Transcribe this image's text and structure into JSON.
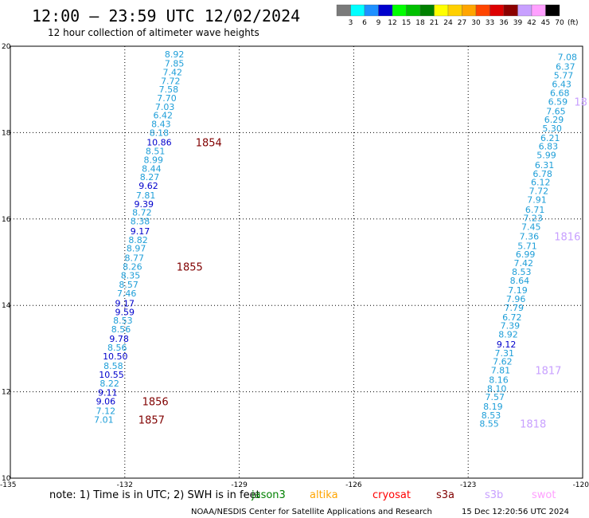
{
  "chart_data": {
    "type": "scatter",
    "title": "12:00 – 23:59 UTC 12/02/2024",
    "subtitle": "12 hour collection of altimeter wave heights",
    "xlim": [
      -135,
      -120
    ],
    "ylim": [
      10,
      20
    ],
    "x_ticks": [
      "-135",
      "-132",
      "-129",
      "-126",
      "-123",
      "-120"
    ],
    "y_ticks": [
      "20",
      "18",
      "16",
      "14",
      "12",
      "10"
    ],
    "grid": true,
    "colorbar": {
      "labels": [
        "3",
        "6",
        "9",
        "12",
        "15",
        "18",
        "21",
        "24",
        "27",
        "30",
        "33",
        "36",
        "39",
        "42",
        "45",
        "70"
      ],
      "unit": "(ft)",
      "colors": [
        "#7a7a7a",
        "#00ffff",
        "#1e90ff",
        "#0000cd",
        "#00ff00",
        "#00c000",
        "#008000",
        "#ffff00",
        "#ffd000",
        "#ffa500",
        "#ff4500",
        "#dd0000",
        "#8b0000",
        "#c8a0ff",
        "#ffa0ff",
        "#000000"
      ]
    },
    "track_time_color": "#800000",
    "series": [
      {
        "points": [
          {
            "lon": -130.7,
            "lat": 19.82,
            "v": "8.92",
            "c": "#1e9ed8"
          },
          {
            "lon": -130.7,
            "lat": 19.6,
            "v": "7.85",
            "c": "#1e9ed8"
          },
          {
            "lon": -130.75,
            "lat": 19.4,
            "v": "7.42",
            "c": "#1e9ed8"
          },
          {
            "lon": -130.8,
            "lat": 19.2,
            "v": "7.72",
            "c": "#1e9ed8"
          },
          {
            "lon": -130.85,
            "lat": 19.0,
            "v": "7.58",
            "c": "#1e9ed8"
          },
          {
            "lon": -130.9,
            "lat": 18.8,
            "v": "7.70",
            "c": "#1e9ed8"
          },
          {
            "lon": -130.95,
            "lat": 18.6,
            "v": "7.03",
            "c": "#1e9ed8"
          },
          {
            "lon": -131.0,
            "lat": 18.4,
            "v": "6.42",
            "c": "#1e9ed8"
          },
          {
            "lon": -131.05,
            "lat": 18.2,
            "v": "8.43",
            "c": "#1e9ed8"
          },
          {
            "lon": -131.1,
            "lat": 18.0,
            "v": "8.18",
            "c": "#1e9ed8"
          },
          {
            "lon": -131.1,
            "lat": 17.78,
            "v": "10.86",
            "c": "#0000cc"
          },
          {
            "lon": -131.2,
            "lat": 17.57,
            "v": "8.51",
            "c": "#1e9ed8"
          },
          {
            "lon": -131.25,
            "lat": 17.37,
            "v": "8.99",
            "c": "#1e9ed8"
          },
          {
            "lon": -131.3,
            "lat": 17.17,
            "v": "8.44",
            "c": "#1e9ed8"
          },
          {
            "lon": -131.35,
            "lat": 16.97,
            "v": "8.27",
            "c": "#1e9ed8"
          },
          {
            "lon": -131.38,
            "lat": 16.77,
            "v": "9.62",
            "c": "#0000cc"
          },
          {
            "lon": -131.45,
            "lat": 16.55,
            "v": "7.81",
            "c": "#1e9ed8"
          },
          {
            "lon": -131.5,
            "lat": 16.35,
            "v": "9.39",
            "c": "#0000cc"
          },
          {
            "lon": -131.55,
            "lat": 16.15,
            "v": "8.72",
            "c": "#1e9ed8"
          },
          {
            "lon": -131.6,
            "lat": 15.95,
            "v": "8.38",
            "c": "#1e9ed8"
          },
          {
            "lon": -131.6,
            "lat": 15.72,
            "v": "9.17",
            "c": "#0000cc"
          },
          {
            "lon": -131.65,
            "lat": 15.52,
            "v": "8.82",
            "c": "#1e9ed8"
          },
          {
            "lon": -131.7,
            "lat": 15.32,
            "v": "8.97",
            "c": "#1e9ed8"
          },
          {
            "lon": -131.75,
            "lat": 15.1,
            "v": "8.77",
            "c": "#1e9ed8"
          },
          {
            "lon": -131.8,
            "lat": 14.9,
            "v": "8.26",
            "c": "#1e9ed8"
          },
          {
            "lon": -131.85,
            "lat": 14.7,
            "v": "8.35",
            "c": "#1e9ed8"
          },
          {
            "lon": -131.9,
            "lat": 14.48,
            "v": "8.57",
            "c": "#1e9ed8"
          },
          {
            "lon": -131.95,
            "lat": 14.28,
            "v": "7.46",
            "c": "#1e9ed8"
          },
          {
            "lon": -132.0,
            "lat": 14.05,
            "v": "9.17",
            "c": "#0000cc"
          },
          {
            "lon": -132.0,
            "lat": 13.85,
            "v": "9.59",
            "c": "#0000cc"
          },
          {
            "lon": -132.05,
            "lat": 13.65,
            "v": "8.53",
            "c": "#1e9ed8"
          },
          {
            "lon": -132.1,
            "lat": 13.45,
            "v": "8.56",
            "c": "#1e9ed8"
          },
          {
            "lon": -132.15,
            "lat": 13.23,
            "v": "9.78",
            "c": "#0000cc"
          },
          {
            "lon": -132.2,
            "lat": 13.03,
            "v": "8.56",
            "c": "#1e9ed8"
          },
          {
            "lon": -132.25,
            "lat": 12.82,
            "v": "10.50",
            "c": "#0000cc"
          },
          {
            "lon": -132.3,
            "lat": 12.6,
            "v": "8.58",
            "c": "#1e9ed8"
          },
          {
            "lon": -132.35,
            "lat": 12.4,
            "v": "10.55",
            "c": "#0000cc"
          },
          {
            "lon": -132.4,
            "lat": 12.2,
            "v": "8.22",
            "c": "#1e9ed8"
          },
          {
            "lon": -132.45,
            "lat": 11.98,
            "v": "9.11",
            "c": "#0000cc"
          },
          {
            "lon": -132.5,
            "lat": 11.78,
            "v": "9.06",
            "c": "#0000cc"
          },
          {
            "lon": -132.5,
            "lat": 11.56,
            "v": "7.12",
            "c": "#1e9ed8"
          },
          {
            "lon": -132.55,
            "lat": 11.36,
            "v": "7.01",
            "c": "#1e9ed8"
          }
        ],
        "time_labels": [
          {
            "lon": -129.8,
            "lat": 17.78,
            "t": "1854"
          },
          {
            "lon": -130.3,
            "lat": 14.9,
            "t": "1855"
          },
          {
            "lon": -131.2,
            "lat": 11.78,
            "t": "1856"
          },
          {
            "lon": -131.3,
            "lat": 11.36,
            "t": "1857"
          }
        ]
      },
      {
        "points": [
          {
            "lon": -120.4,
            "lat": 19.75,
            "v": "7.08",
            "c": "#1e9ed8"
          },
          {
            "lon": -120.45,
            "lat": 19.53,
            "v": "6.37",
            "c": "#1e9ed8"
          },
          {
            "lon": -120.5,
            "lat": 19.33,
            "v": "5.77",
            "c": "#1e9ed8"
          },
          {
            "lon": -120.55,
            "lat": 19.12,
            "v": "6.43",
            "c": "#1e9ed8"
          },
          {
            "lon": -120.6,
            "lat": 18.92,
            "v": "6.68",
            "c": "#1e9ed8"
          },
          {
            "lon": -120.65,
            "lat": 18.72,
            "v": "6.59",
            "c": "#1e9ed8"
          },
          {
            "lon": -120.7,
            "lat": 18.5,
            "v": "7.65",
            "c": "#1e9ed8"
          },
          {
            "lon": -120.75,
            "lat": 18.3,
            "v": "6.29",
            "c": "#1e9ed8"
          },
          {
            "lon": -120.8,
            "lat": 18.1,
            "v": "5.30",
            "c": "#1e9ed8"
          },
          {
            "lon": -120.85,
            "lat": 17.88,
            "v": "6.21",
            "c": "#1e9ed8"
          },
          {
            "lon": -120.9,
            "lat": 17.68,
            "v": "6.83",
            "c": "#1e9ed8"
          },
          {
            "lon": -120.95,
            "lat": 17.48,
            "v": "5.99",
            "c": "#1e9ed8"
          },
          {
            "lon": -121.0,
            "lat": 17.25,
            "v": "6.31",
            "c": "#1e9ed8"
          },
          {
            "lon": -121.05,
            "lat": 17.05,
            "v": "6.78",
            "c": "#1e9ed8"
          },
          {
            "lon": -121.1,
            "lat": 16.85,
            "v": "6.12",
            "c": "#1e9ed8"
          },
          {
            "lon": -121.15,
            "lat": 16.65,
            "v": "7.72",
            "c": "#1e9ed8"
          },
          {
            "lon": -121.2,
            "lat": 16.45,
            "v": "7.91",
            "c": "#1e9ed8"
          },
          {
            "lon": -121.25,
            "lat": 16.22,
            "v": "6.71",
            "c": "#1e9ed8"
          },
          {
            "lon": -121.3,
            "lat": 16.02,
            "v": "7.23",
            "c": "#1e9ed8"
          },
          {
            "lon": -121.35,
            "lat": 15.82,
            "v": "7.45",
            "c": "#1e9ed8"
          },
          {
            "lon": -121.4,
            "lat": 15.6,
            "v": "7.36",
            "c": "#1e9ed8"
          },
          {
            "lon": -121.45,
            "lat": 15.38,
            "v": "5.71",
            "c": "#1e9ed8"
          },
          {
            "lon": -121.5,
            "lat": 15.18,
            "v": "6.99",
            "c": "#1e9ed8"
          },
          {
            "lon": -121.55,
            "lat": 14.98,
            "v": "7.42",
            "c": "#1e9ed8"
          },
          {
            "lon": -121.6,
            "lat": 14.78,
            "v": "8.53",
            "c": "#1e9ed8"
          },
          {
            "lon": -121.65,
            "lat": 14.58,
            "v": "8.64",
            "c": "#1e9ed8"
          },
          {
            "lon": -121.7,
            "lat": 14.35,
            "v": "7.19",
            "c": "#1e9ed8"
          },
          {
            "lon": -121.75,
            "lat": 14.15,
            "v": "7.96",
            "c": "#1e9ed8"
          },
          {
            "lon": -121.8,
            "lat": 13.95,
            "v": "7.79",
            "c": "#1e9ed8"
          },
          {
            "lon": -121.85,
            "lat": 13.73,
            "v": "6.72",
            "c": "#1e9ed8"
          },
          {
            "lon": -121.9,
            "lat": 13.53,
            "v": "7.39",
            "c": "#1e9ed8"
          },
          {
            "lon": -121.95,
            "lat": 13.33,
            "v": "8.92",
            "c": "#1e9ed8"
          },
          {
            "lon": -122.0,
            "lat": 13.1,
            "v": "9.12",
            "c": "#0000cc"
          },
          {
            "lon": -122.05,
            "lat": 12.9,
            "v": "7.31",
            "c": "#1e9ed8"
          },
          {
            "lon": -122.1,
            "lat": 12.7,
            "v": "7.62",
            "c": "#1e9ed8"
          },
          {
            "lon": -122.15,
            "lat": 12.5,
            "v": "7.81",
            "c": "#1e9ed8"
          },
          {
            "lon": -122.2,
            "lat": 12.28,
            "v": "8.16",
            "c": "#1e9ed8"
          },
          {
            "lon": -122.25,
            "lat": 12.08,
            "v": "8.10",
            "c": "#1e9ed8"
          },
          {
            "lon": -122.3,
            "lat": 11.88,
            "v": "7.57",
            "c": "#1e9ed8"
          },
          {
            "lon": -122.35,
            "lat": 11.66,
            "v": "8.19",
            "c": "#1e9ed8"
          },
          {
            "lon": -122.4,
            "lat": 11.46,
            "v": "8.53",
            "c": "#1e9ed8"
          },
          {
            "lon": -122.45,
            "lat": 11.26,
            "v": "8.55",
            "c": "#1e9ed8"
          }
        ],
        "time_labels": [
          {
            "lon": -120.05,
            "lat": 18.72,
            "t": "18"
          },
          {
            "lon": -120.4,
            "lat": 15.6,
            "t": "1816"
          },
          {
            "lon": -120.9,
            "lat": 12.5,
            "t": "1817"
          },
          {
            "lon": -121.3,
            "lat": 11.26,
            "t": "1818"
          }
        ],
        "time_color": "#c8a0ff"
      }
    ]
  },
  "footer": {
    "note": "note: 1) Time is in UTC; 2) SWH is in feet",
    "missions": [
      {
        "name": "jason3",
        "color": "#008000"
      },
      {
        "name": "altika",
        "color": "#ffa500"
      },
      {
        "name": "cryosat",
        "color": "#ff0000"
      },
      {
        "name": "s3a",
        "color": "#800000"
      },
      {
        "name": "s3b",
        "color": "#c8a0ff"
      },
      {
        "name": "swot",
        "color": "#ffa0ff"
      }
    ],
    "credit": "NOAA/NESDIS Center for Satellite Applications and Research",
    "timestamp": "15 Dec 12:20:56 UTC 2024"
  }
}
